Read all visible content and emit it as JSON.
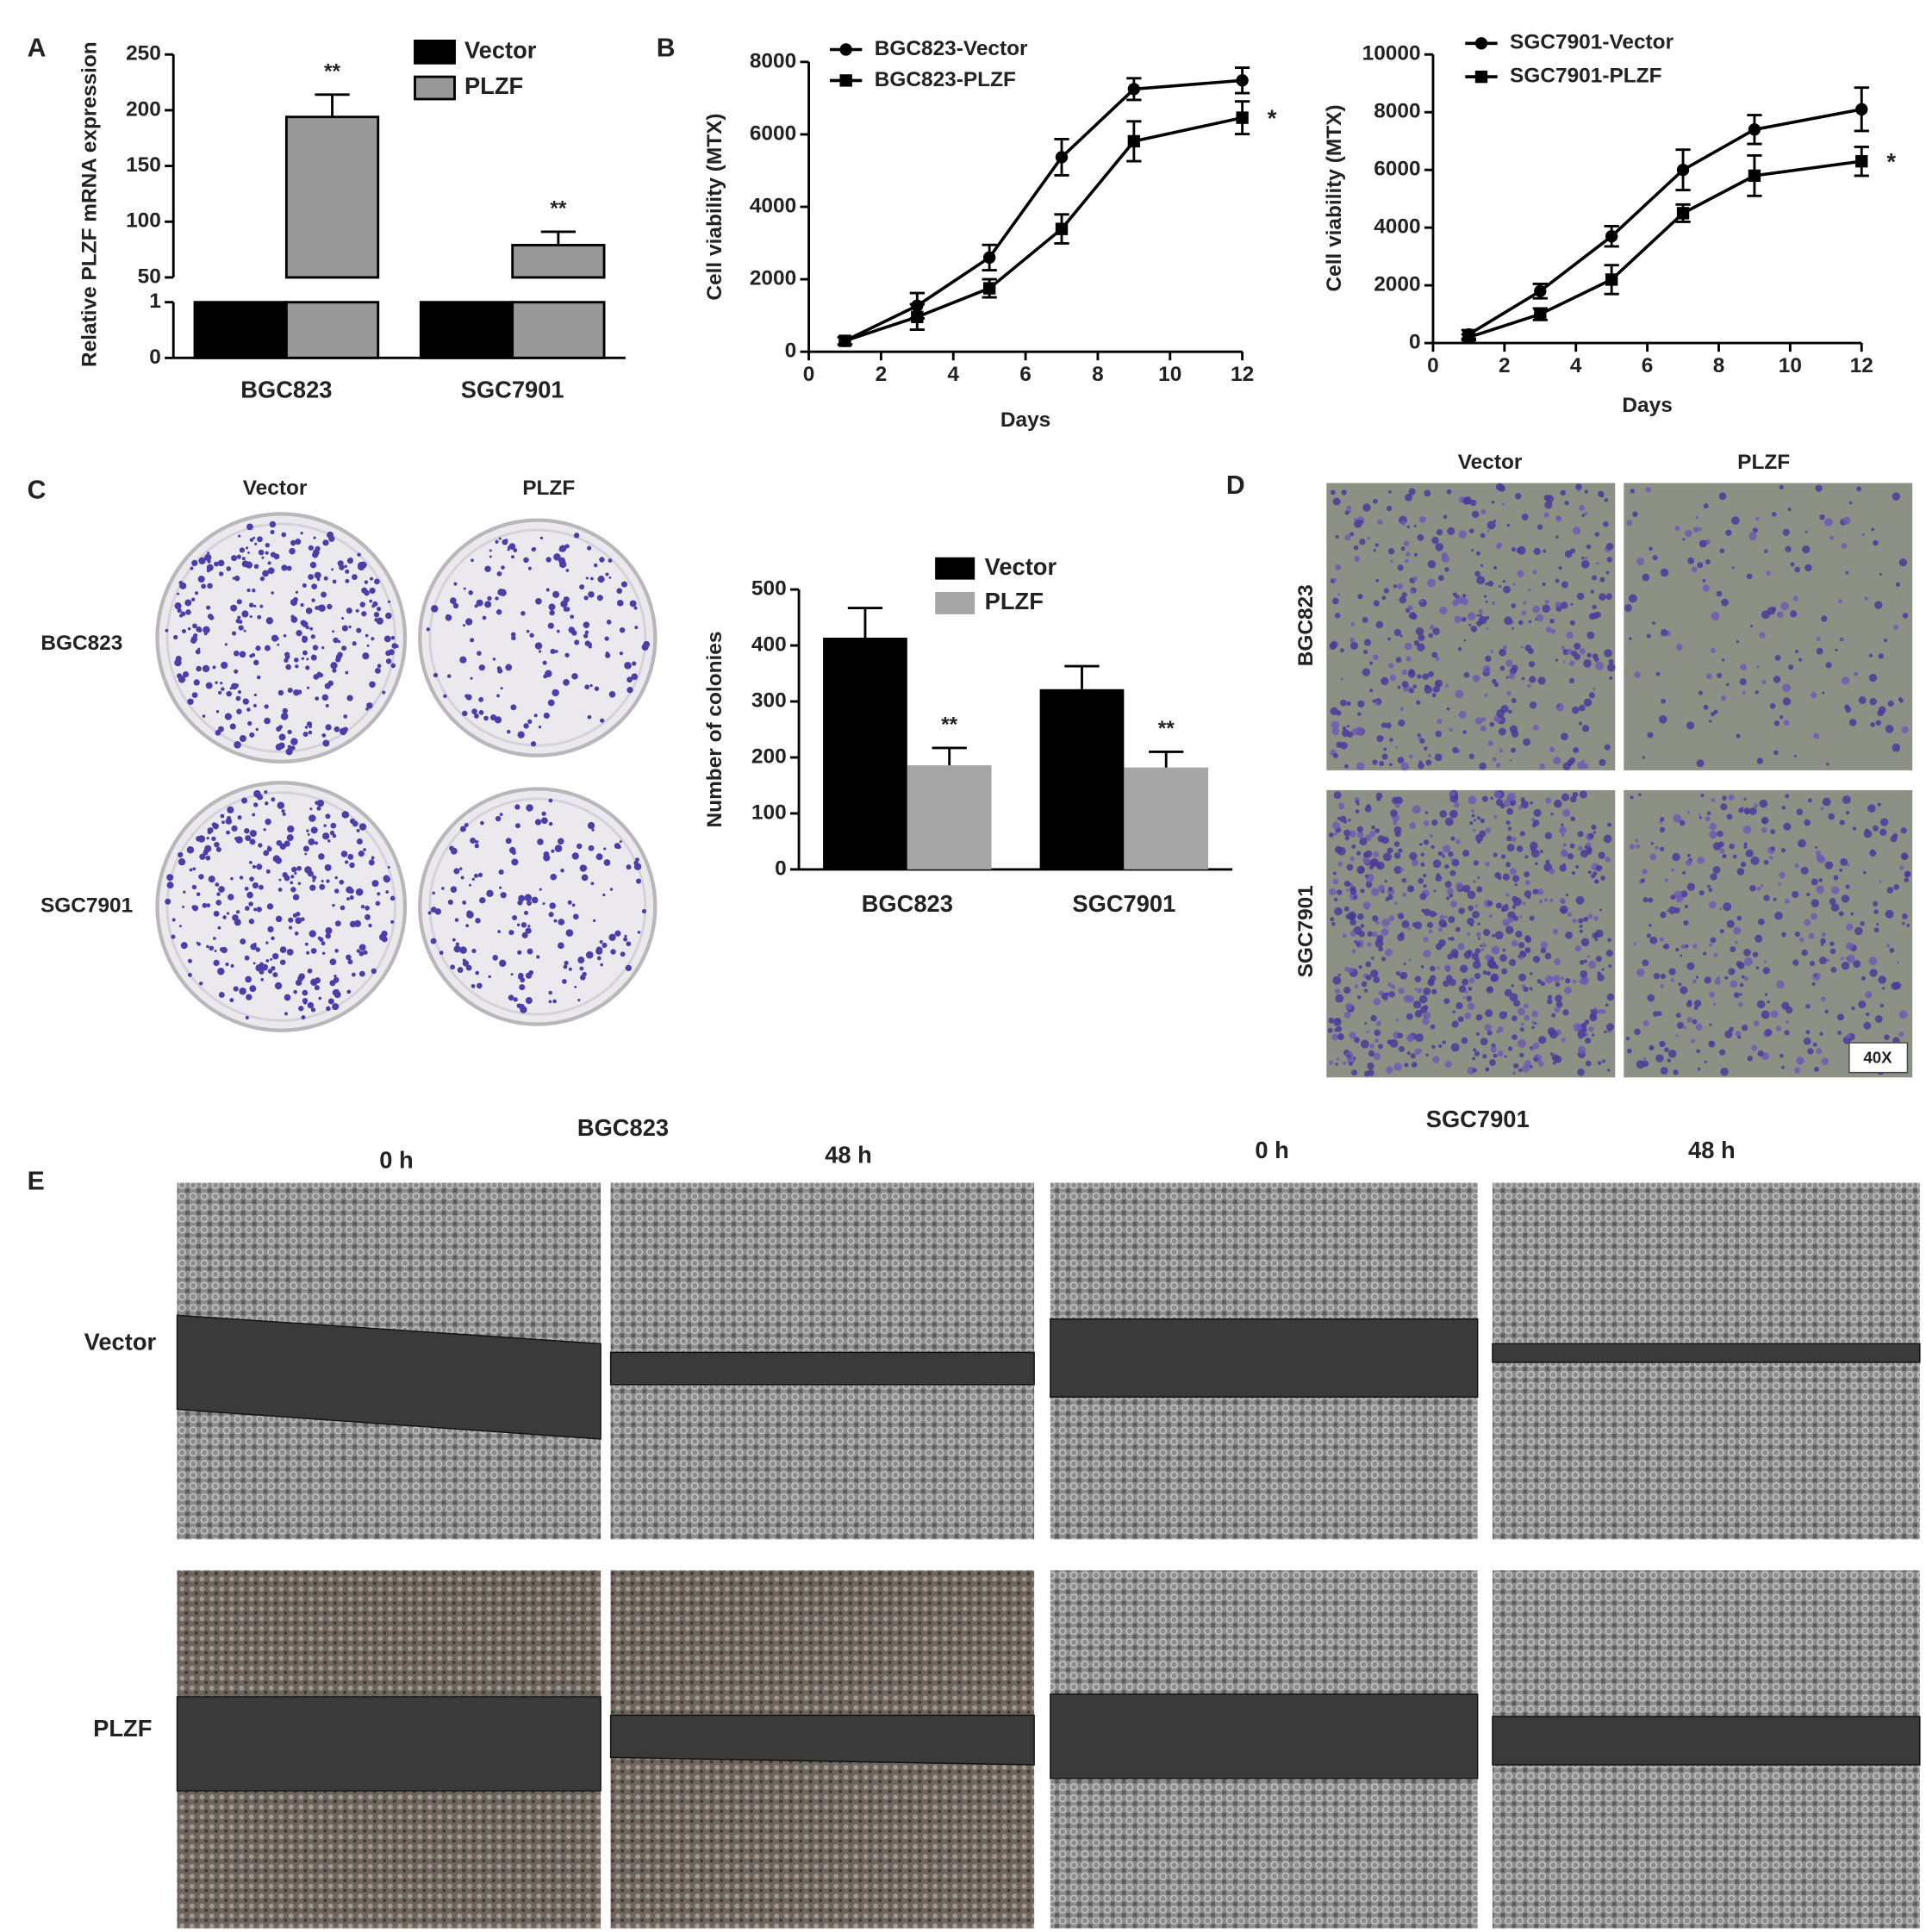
{
  "chart_data": [
    {
      "type": "bar",
      "ylabel": "Relative PLZF mRNA expression",
      "categories": [
        "BGC823",
        "SGC7901"
      ],
      "series": [
        {
          "name": "Vector",
          "color": "#000000",
          "values": [
            1,
            1
          ]
        },
        {
          "name": "PLZF",
          "color": "#999999",
          "values": [
            194,
            79
          ],
          "errors": [
            20,
            12
          ],
          "significance": [
            "**",
            "**"
          ]
        }
      ],
      "edgecolor": "#000000",
      "ylim": [
        0,
        250
      ],
      "ybreak": [
        1,
        50
      ],
      "yticks": [
        0,
        1,
        50,
        100,
        150,
        200,
        250
      ]
    },
    {
      "type": "line",
      "xlabel": "Days",
      "ylabel": "Cell viability (MTX)",
      "x": [
        1,
        3,
        5,
        7,
        9,
        12
      ],
      "series": [
        {
          "name": "BGC823-Vector",
          "color": "#000000",
          "marker": "circle",
          "values": [
            300,
            1270,
            2600,
            5370,
            7250,
            7490
          ],
          "errors": [
            100,
            350,
            350,
            500,
            300,
            350
          ]
        },
        {
          "name": "BGC823-PLZF",
          "color": "#000000",
          "marker": "square",
          "values": [
            300,
            960,
            1750,
            3390,
            5810,
            6460
          ],
          "errors": [
            100,
            350,
            250,
            400,
            550,
            450
          ]
        }
      ],
      "significance": "*",
      "xlim": [
        0,
        12
      ],
      "xticks": [
        0,
        2,
        4,
        6,
        8,
        10,
        12
      ],
      "ylim": [
        0,
        8000
      ],
      "yticks": [
        0,
        2000,
        4000,
        6000,
        8000
      ]
    },
    {
      "type": "line",
      "xlabel": "Days",
      "ylabel": "Cell viability (MTX)",
      "x": [
        1,
        3,
        5,
        7,
        9,
        12
      ],
      "series": [
        {
          "name": "SGC7901-Vector",
          "color": "#000000",
          "marker": "circle",
          "values": [
            300,
            1800,
            3700,
            6000,
            7400,
            8100
          ],
          "errors": [
            150,
            250,
            350,
            700,
            500,
            750
          ]
        },
        {
          "name": "SGC7901-PLZF",
          "color": "#000000",
          "marker": "square",
          "values": [
            200,
            1000,
            2200,
            4500,
            5800,
            6300
          ],
          "errors": [
            100,
            200,
            500,
            300,
            700,
            500
          ]
        }
      ],
      "significance": "*",
      "xlim": [
        0,
        12
      ],
      "xticks": [
        0,
        2,
        4,
        6,
        8,
        10,
        12
      ],
      "ylim": [
        0,
        10000
      ],
      "yticks": [
        0,
        2000,
        4000,
        6000,
        8000,
        10000
      ]
    },
    {
      "type": "bar",
      "ylabel": "Number of colonies",
      "categories": [
        "BGC823",
        "SGC7901"
      ],
      "series": [
        {
          "name": "Vector",
          "color": "#000000",
          "values": [
            414,
            322
          ],
          "errors": [
            53,
            41
          ]
        },
        {
          "name": "PLZF",
          "color": "#a6a6a6",
          "values": [
            186,
            182
          ],
          "errors": [
            31,
            28
          ],
          "significance": [
            "**",
            "**"
          ]
        }
      ],
      "ylim": [
        0,
        500
      ],
      "yticks": [
        0,
        100,
        200,
        300,
        400,
        500
      ]
    }
  ],
  "panel_labels": [
    "A",
    "B",
    "C",
    "D",
    "E"
  ],
  "colony_images": {
    "columns": [
      "Vector",
      "PLZF"
    ],
    "rows": [
      "BGC823",
      "SGC7901"
    ]
  },
  "invasion_images": {
    "columns": [
      "Vector",
      "PLZF"
    ],
    "rows": [
      "BGC823",
      "SGC7901"
    ],
    "magnification": "40X"
  },
  "wound_images": {
    "cell_lines": [
      "BGC823",
      "SGC7901"
    ],
    "times": [
      "0 h",
      "48 h"
    ],
    "rows": [
      "Vector",
      "PLZF"
    ]
  }
}
